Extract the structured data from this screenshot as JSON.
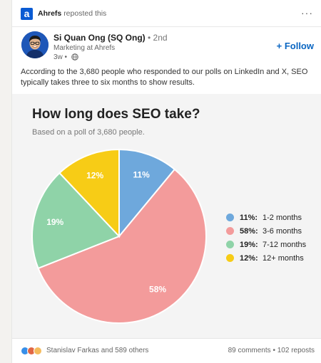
{
  "repost": {
    "company": "Ahrefs",
    "text": "reposted this",
    "logo_letter": "a",
    "more_label": "···"
  },
  "author": {
    "name": "Si Quan Ong (SQ Ong)",
    "degree": "• 2nd",
    "title": "Marketing at Ahrefs",
    "time": "3w •",
    "follow_label": "+ Follow"
  },
  "post": {
    "text": "According to the 3,680 people who responded to our polls on LinkedIn and X, SEO typically takes three to six months to show results."
  },
  "chart_data": {
    "type": "pie",
    "title": "How long does SEO take?",
    "subtitle": "Based on a poll of 3,680 people.",
    "slices": [
      {
        "label": "1-2 months",
        "value": 11,
        "display": "11%",
        "color": "#6ea8dc"
      },
      {
        "label": "3-6 months",
        "value": 58,
        "display": "58%",
        "color": "#f39b9b"
      },
      {
        "label": "7-12 months",
        "value": 19,
        "display": "19%",
        "color": "#8fd3a8"
      },
      {
        "label": "12+ months",
        "value": 12,
        "display": "12%",
        "color": "#f7cc16"
      }
    ],
    "legend_position": "right"
  },
  "footer": {
    "reactions_text": "Stanislav Farkas and 589 others",
    "comments": "89 comments",
    "separator": "•",
    "reposts": "102 reposts"
  },
  "colors": {
    "accent": "#0a66c2",
    "logo": "#0a5bd3"
  }
}
